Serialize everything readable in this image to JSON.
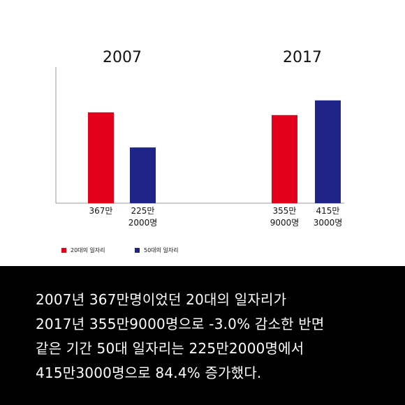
{
  "chart_data": {
    "type": "bar",
    "groups": [
      "2007",
      "2017"
    ],
    "series": [
      {
        "name": "20대의 일자리",
        "color": "#e3001b",
        "values": [
          3670000,
          3559000
        ]
      },
      {
        "name": "50대의 일자리",
        "color": "#1f2488",
        "values": [
          2252000,
          4153000
        ]
      }
    ],
    "bar_labels": [
      [
        "367만",
        ""
      ],
      [
        "225만",
        "2000명"
      ],
      [
        "355만",
        "9000명"
      ],
      [
        "415만",
        "3000명"
      ]
    ],
    "ylim": [
      0,
      5500000
    ],
    "grid": false,
    "legend_position": "bottom-left"
  },
  "caption": [
    "2007년 367만명이었던 20대의 일자리가",
    "2017년 355만9000명으로 -3.0% 감소한 반면",
    "같은 기간 50대 일자리는 225만2000명에서",
    "415만3000명으로 84.4% 증가했다."
  ]
}
